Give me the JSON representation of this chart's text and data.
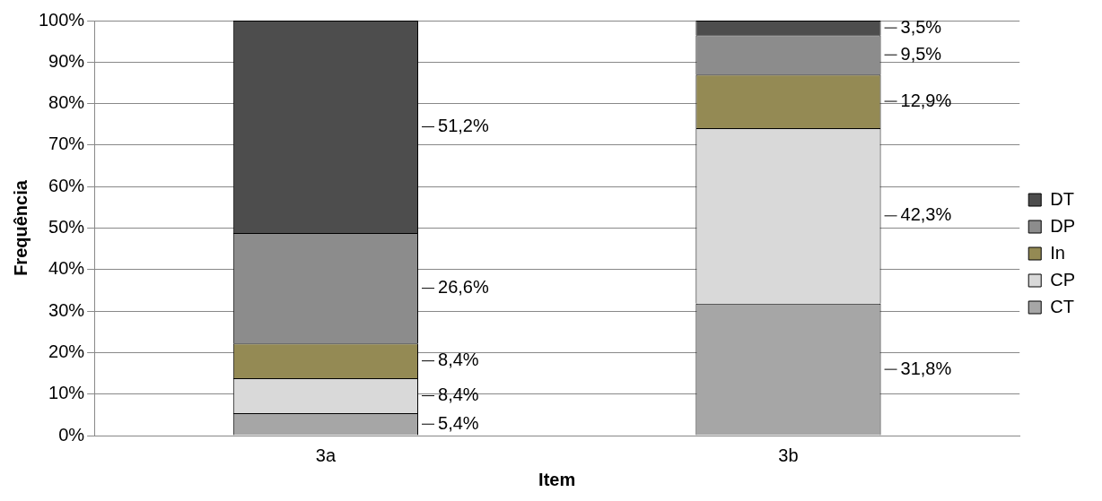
{
  "chart_data": {
    "type": "bar",
    "stacked": true,
    "xlabel": "Item",
    "ylabel": "Frequência",
    "categories": [
      "3a",
      "3b"
    ],
    "ylim": [
      0,
      100
    ],
    "yticks": [
      {
        "value": 0,
        "label": "0%"
      },
      {
        "value": 10,
        "label": "10%"
      },
      {
        "value": 20,
        "label": "20%"
      },
      {
        "value": 30,
        "label": "30%"
      },
      {
        "value": 40,
        "label": "40%"
      },
      {
        "value": 50,
        "label": "50%"
      },
      {
        "value": 60,
        "label": "60%"
      },
      {
        "value": 70,
        "label": "70%"
      },
      {
        "value": 80,
        "label": "80%"
      },
      {
        "value": 90,
        "label": "90%"
      },
      {
        "value": 100,
        "label": "100%"
      }
    ],
    "grid": "y",
    "legend": "right",
    "series": [
      {
        "name": "CT",
        "color": "#a6a6a6",
        "values": [
          5.4,
          31.8
        ],
        "value_labels": [
          "5,4%",
          "31,8%"
        ]
      },
      {
        "name": "CP",
        "color": "#d9d9d9",
        "values": [
          8.4,
          42.3
        ],
        "value_labels": [
          "8,4%",
          "42,3%"
        ]
      },
      {
        "name": "In",
        "color": "#948a54",
        "values": [
          8.4,
          12.9
        ],
        "value_labels": [
          "8,4%",
          "12,9%"
        ]
      },
      {
        "name": "DP",
        "color": "#8c8c8c",
        "values": [
          26.6,
          9.5
        ],
        "value_labels": [
          "26,6%",
          "9,5%"
        ]
      },
      {
        "name": "DT",
        "color": "#4d4d4d",
        "values": [
          51.2,
          3.5
        ],
        "value_labels": [
          "51,2%",
          "3,5%"
        ]
      }
    ]
  }
}
